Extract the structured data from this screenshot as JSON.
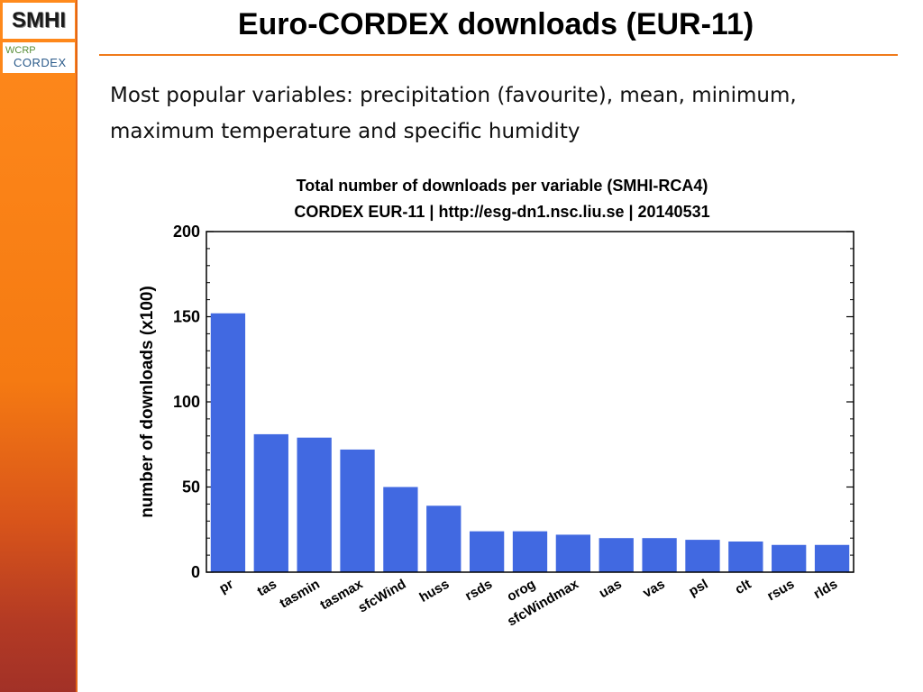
{
  "slide": {
    "title": "Euro-CORDEX downloads (EUR-11)",
    "text": "Most popular variables: precipitation (favourite), mean, minimum, maximum temperature and specific humidity",
    "logos": {
      "smhi": "SMHI",
      "wcrp": "WCRP",
      "cordex": "CORDEX"
    },
    "colors": {
      "sidebar": "#f57a12",
      "title_rule": "#f07a1a"
    }
  },
  "chart_data": {
    "type": "bar",
    "title": "Total number of downloads per variable (SMHI-RCA4)",
    "subtitle": "CORDEX EUR-11 | http://esg-dn1.nsc.liu.se | 20140531",
    "xlabel": "",
    "ylabel": "number of downloads (x100)",
    "ylim": [
      0,
      200
    ],
    "yticks": [
      0,
      50,
      100,
      150,
      200
    ],
    "categories": [
      "pr",
      "tas",
      "tasmin",
      "tasmax",
      "sfcWind",
      "huss",
      "rsds",
      "orog",
      "sfcWindmax",
      "uas",
      "vas",
      "psl",
      "clt",
      "rsus",
      "rlds"
    ],
    "values": [
      152,
      81,
      79,
      72,
      50,
      39,
      24,
      24,
      22,
      20,
      20,
      19,
      18,
      16,
      16
    ],
    "bar_color": "#4169e1",
    "grid": false
  }
}
